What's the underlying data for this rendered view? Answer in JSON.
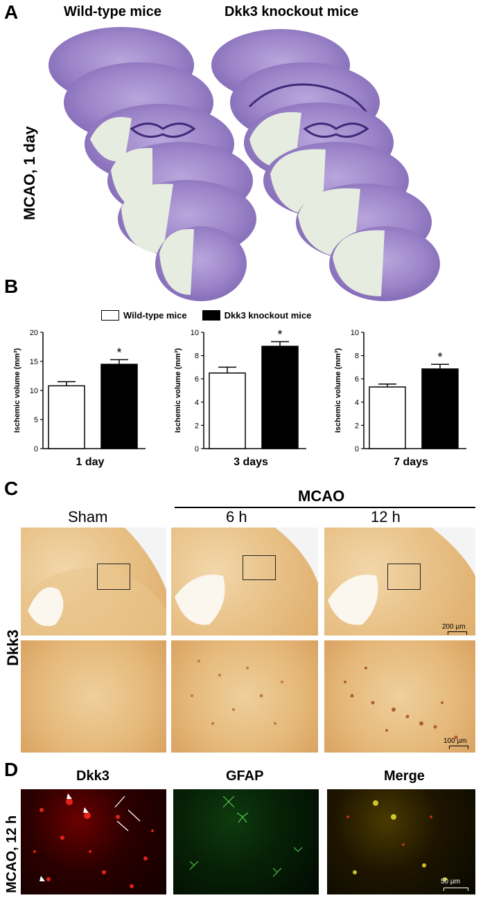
{
  "panel_a": {
    "letter": "A",
    "col1": "Wild-type mice",
    "col2": "Dkk3 knockout mice",
    "row_label": "MCAO, 1 day"
  },
  "panel_b": {
    "letter": "B",
    "legend": {
      "wt": "Wild-type mice",
      "ko": "Dkk3 knockout mice"
    },
    "colors": {
      "wt": "#ffffff",
      "ko": "#000000"
    }
  },
  "chart_data": [
    {
      "type": "bar",
      "title": "",
      "xlabel": "1 day",
      "ylabel": "Ischemic volume (mm³)",
      "ylim": [
        0,
        20
      ],
      "yticks": [
        0,
        5,
        10,
        15,
        20
      ],
      "categories": [
        "Wild-type mice",
        "Dkk3 knockout mice"
      ],
      "values": [
        10.8,
        14.5
      ],
      "errors": [
        0.7,
        0.8
      ],
      "annotation": "*"
    },
    {
      "type": "bar",
      "title": "",
      "xlabel": "3 days",
      "ylabel": "Ischemic volume (mm³)",
      "ylim": [
        0,
        10
      ],
      "yticks": [
        0,
        2,
        4,
        6,
        8,
        10
      ],
      "categories": [
        "Wild-type mice",
        "Dkk3 knockout mice"
      ],
      "values": [
        6.5,
        8.8
      ],
      "errors": [
        0.5,
        0.4
      ],
      "annotation": "*"
    },
    {
      "type": "bar",
      "title": "",
      "xlabel": "7 days",
      "ylabel": "Ischemic volume (mm³)",
      "ylim": [
        0,
        10
      ],
      "yticks": [
        0,
        2,
        4,
        6,
        8,
        10
      ],
      "categories": [
        "Wild-type mice",
        "Dkk3 knockout mice"
      ],
      "values": [
        5.3,
        6.85
      ],
      "errors": [
        0.25,
        0.4
      ],
      "annotation": "*"
    }
  ],
  "panel_c": {
    "letter": "C",
    "group": "MCAO",
    "col1": "Sham",
    "col2": "6 h",
    "col3": "12 h",
    "row_label": "Dkk3",
    "scale_top": "200 µm",
    "scale_bottom": "100 µm"
  },
  "panel_d": {
    "letter": "D",
    "col1": "Dkk3",
    "col2": "GFAP",
    "col3": "Merge",
    "row_label": "MCAO, 12 h",
    "scale": "50 µm"
  }
}
